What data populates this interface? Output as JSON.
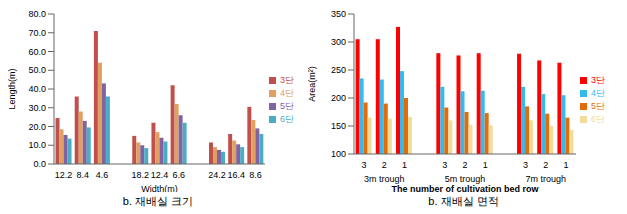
{
  "chart_data": [
    {
      "type": "bar",
      "title": "b. 재배실 크기",
      "x_label": "Width(m)",
      "y_label": "Length(m)",
      "categories": [
        "12.2",
        "8.4",
        "4.6",
        null,
        "18.2",
        "12.4",
        "6.6",
        null,
        "24.2",
        "16.4",
        "8.6"
      ],
      "series": [
        {
          "name": "3단",
          "color": "#c0504d",
          "values": [
            24.5,
            36,
            71,
            null,
            15,
            22,
            42,
            null,
            11.5,
            16,
            30.5
          ]
        },
        {
          "name": "4단",
          "color": "#e0a060",
          "values": [
            18.5,
            28,
            54,
            null,
            11.5,
            17,
            32,
            null,
            9,
            12.5,
            23.5
          ]
        },
        {
          "name": "5단",
          "color": "#8064a2",
          "values": [
            15.5,
            23,
            43,
            null,
            10,
            14,
            26,
            null,
            7.5,
            10.5,
            19
          ]
        },
        {
          "name": "6단",
          "color": "#4bacc6",
          "values": [
            13.5,
            19.5,
            36,
            null,
            8.5,
            12,
            22,
            null,
            6.5,
            9,
            16
          ]
        }
      ],
      "ylim": [
        0,
        80
      ],
      "yticks": [
        {
          "value": 0,
          "label": "0.0"
        },
        {
          "value": 10,
          "label": "10.0"
        },
        {
          "value": 20,
          "label": "20.0"
        },
        {
          "value": 30,
          "label": "30.0"
        },
        {
          "value": 40,
          "label": "40.0"
        },
        {
          "value": 50,
          "label": "50.0"
        },
        {
          "value": 60,
          "label": "60.0"
        },
        {
          "value": 70,
          "label": "70.0"
        },
        {
          "value": 80,
          "label": "80.0"
        }
      ],
      "grid": false,
      "legend": "right"
    },
    {
      "type": "bar",
      "title": "b. 재배실 면적",
      "x_label": "The number of cultivation bed row",
      "y_label": "Area(m²)",
      "categories": [
        "3",
        "2",
        "1",
        null,
        "3",
        "2",
        "1",
        null,
        "3",
        "2",
        "1"
      ],
      "groups": [
        null,
        "3m trough",
        null,
        null,
        null,
        "5m trough",
        null,
        null,
        null,
        "7m trough",
        null
      ],
      "series": [
        {
          "name": "3단",
          "color": "#ff0000",
          "values": [
            305,
            305,
            327,
            null,
            280,
            276,
            280,
            null,
            279,
            267,
            263
          ]
        },
        {
          "name": "4단",
          "color": "#33bbee",
          "values": [
            235,
            233,
            248,
            null,
            220,
            212,
            213,
            null,
            220,
            207,
            205
          ]
        },
        {
          "name": "5단",
          "color": "#e36c09",
          "values": [
            192,
            190,
            200,
            null,
            183,
            175,
            173,
            null,
            185,
            172,
            165
          ]
        },
        {
          "name": "6단",
          "color": "#f2dc9b",
          "values": [
            165,
            163,
            166,
            null,
            160,
            152,
            151,
            null,
            160,
            150,
            143
          ]
        }
      ],
      "ylim": [
        100,
        350
      ],
      "yticks": [
        100,
        150,
        200,
        250,
        300,
        350
      ],
      "grid": false,
      "legend": "right"
    }
  ]
}
